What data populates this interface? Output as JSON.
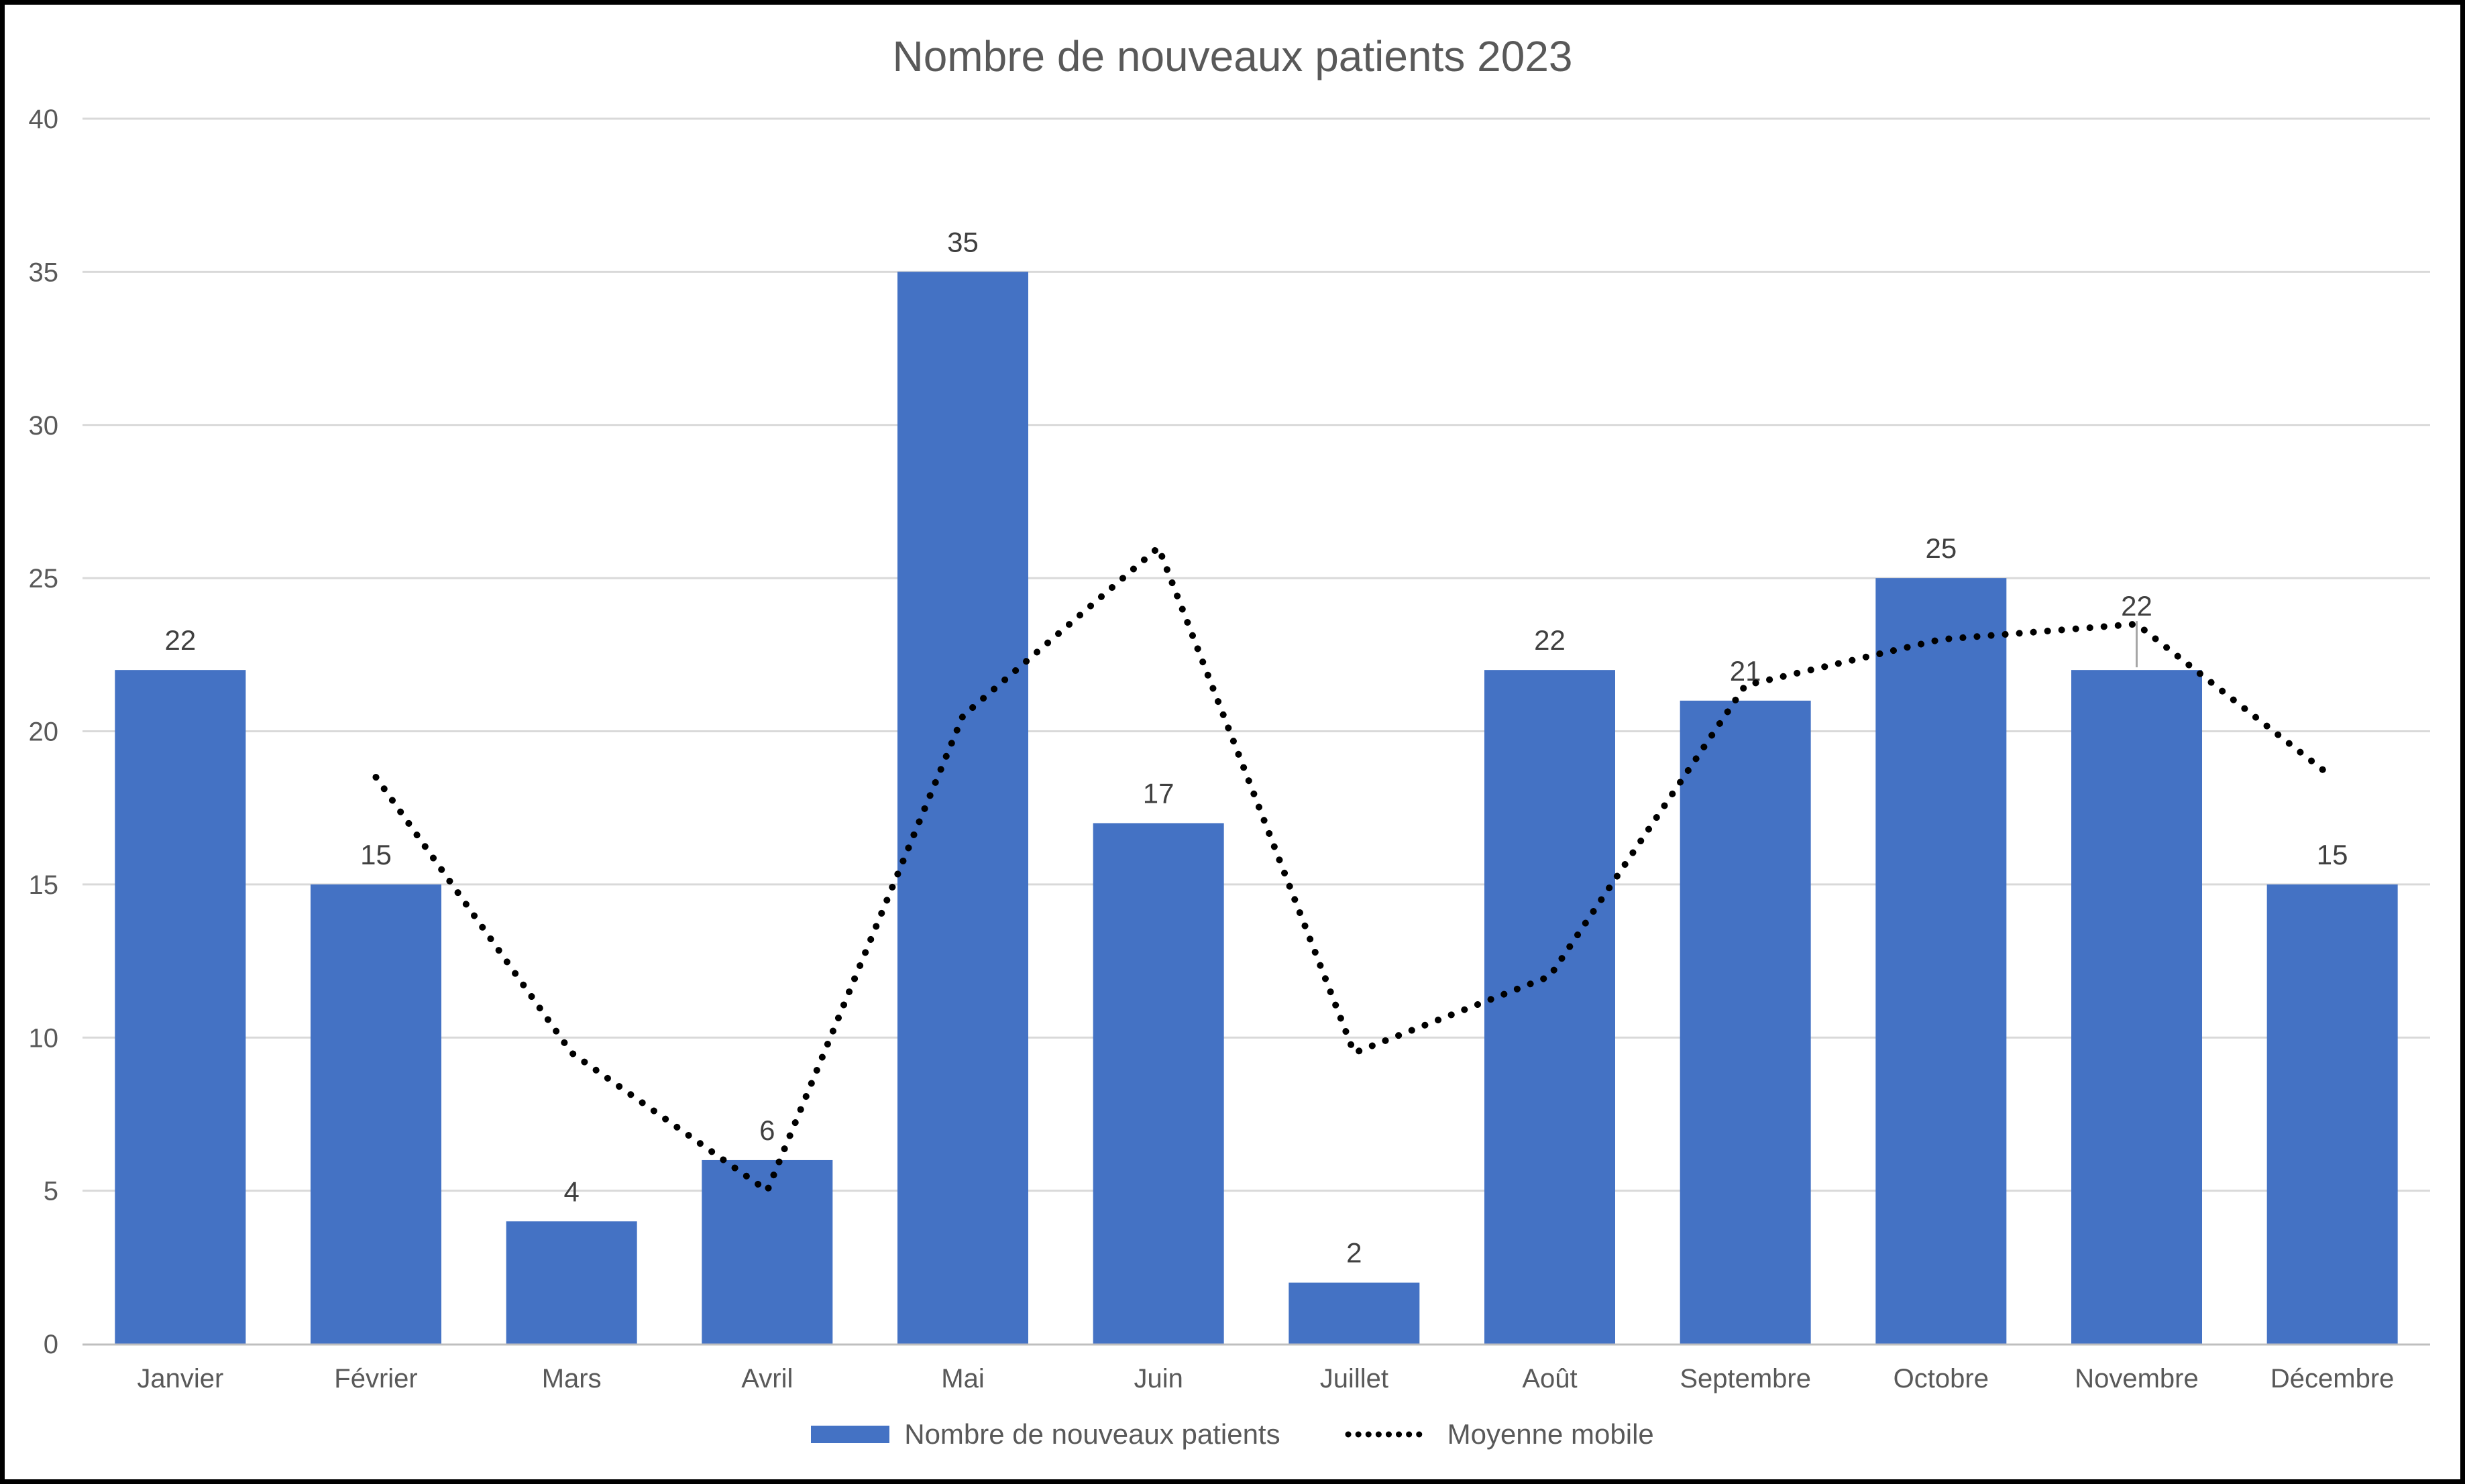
{
  "chart_data": {
    "type": "bar",
    "title": "Nombre de nouveaux patients 2023",
    "categories": [
      "Janvier",
      "Février",
      "Mars",
      "Avril",
      "Mai",
      "Juin",
      "Juillet",
      "Août",
      "Septembre",
      "Octobre",
      "Novembre",
      "Décembre"
    ],
    "series": [
      {
        "name": "Nombre de nouveaux patients",
        "type": "bar",
        "color": "#4472C4",
        "values": [
          22,
          15,
          4,
          6,
          35,
          17,
          2,
          22,
          21,
          25,
          22,
          15
        ],
        "data_labels": true,
        "label_callouts": [
          10
        ]
      },
      {
        "name": "Moyenne mobile",
        "type": "line",
        "style": "dotted",
        "color": "#000000",
        "values": [
          null,
          18.5,
          9.5,
          5,
          20.5,
          26,
          9.5,
          12,
          21.5,
          23,
          23.5,
          18.5
        ]
      }
    ],
    "ylim": [
      0,
      40
    ],
    "yticks": [
      0,
      5,
      10,
      15,
      20,
      25,
      30,
      35,
      40
    ],
    "grid": true,
    "legend_position": "bottom"
  },
  "colors": {
    "gridline": "#D9D9D9",
    "axis_line": "#BFBFBF",
    "tick_text": "#595959",
    "category_text": "#595959",
    "data_label_text": "#404040",
    "title_text": "#595959",
    "leader_line": "#A6A6A6",
    "frame_border": "#000000",
    "background": "#FFFFFF"
  }
}
